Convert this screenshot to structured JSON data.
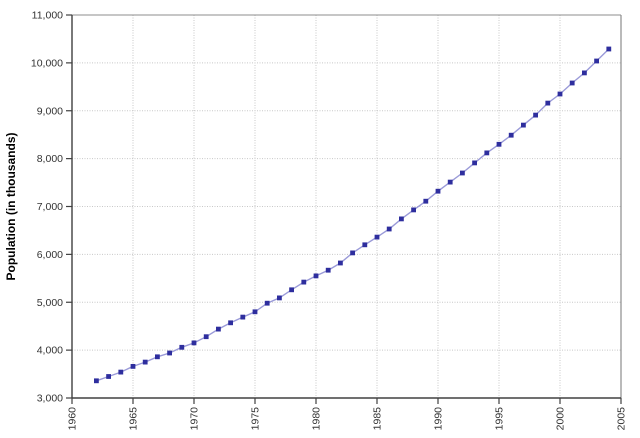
{
  "chart": {
    "y_axis_title": "Population (in thousands)",
    "colors": {
      "marker": "#2E2E9E",
      "line": "#9A9AD8",
      "grid": "#C8C8C8",
      "axis": "#404040",
      "border": "#8C8C8C",
      "tick_label": "#333333",
      "axis_title": "#000000",
      "background": "#FFFFFF"
    }
  },
  "chart_data": {
    "type": "line",
    "title": "",
    "xlabel": "",
    "ylabel": "Population (in thousands)",
    "marker": "square",
    "grid": true,
    "legend": "none",
    "xlim": [
      1960,
      2005
    ],
    "ylim": [
      3000,
      11000
    ],
    "x_ticks": [
      1960,
      1965,
      1970,
      1975,
      1980,
      1985,
      1990,
      1995,
      2000,
      2005
    ],
    "y_ticks": [
      3000,
      4000,
      5000,
      6000,
      7000,
      8000,
      9000,
      10000,
      11000
    ],
    "x": [
      1962,
      1963,
      1964,
      1965,
      1966,
      1967,
      1968,
      1969,
      1970,
      1971,
      1972,
      1973,
      1974,
      1975,
      1976,
      1977,
      1978,
      1979,
      1980,
      1981,
      1982,
      1983,
      1984,
      1985,
      1986,
      1987,
      1988,
      1989,
      1990,
      1991,
      1992,
      1993,
      1994,
      1995,
      1996,
      1997,
      1998,
      1999,
      2000,
      2001,
      2002,
      2003,
      2004
    ],
    "series": [
      {
        "name": "Population",
        "values": [
          3360,
          3450,
          3540,
          3660,
          3750,
          3860,
          3940,
          4060,
          4150,
          4280,
          4440,
          4570,
          4690,
          4800,
          4980,
          5090,
          5260,
          5420,
          5550,
          5670,
          5820,
          6030,
          6200,
          6360,
          6530,
          6740,
          6930,
          7110,
          7320,
          7510,
          7700,
          7910,
          8120,
          8300,
          8490,
          8700,
          8910,
          9160,
          9350,
          9580,
          9790,
          10040,
          10290
        ]
      }
    ]
  }
}
